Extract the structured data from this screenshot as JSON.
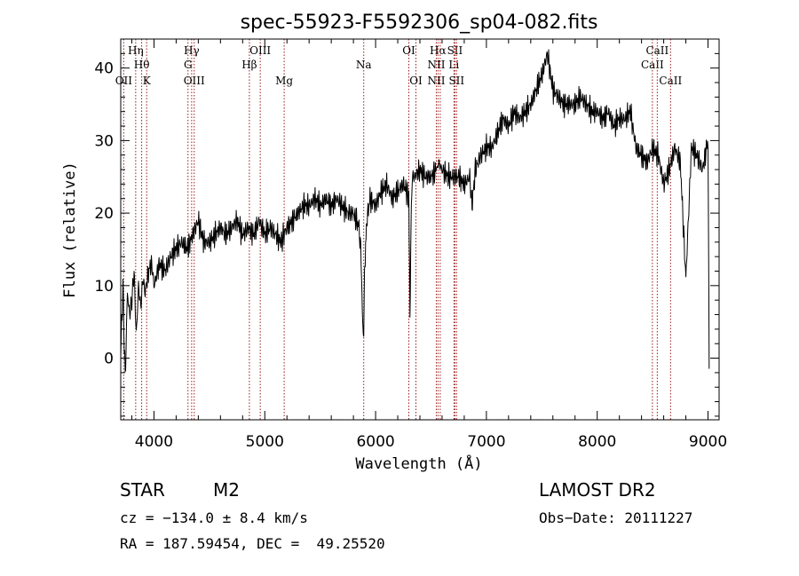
{
  "chart_data": {
    "type": "line",
    "title": "spec-55923-F5592306_sp04-082.fits",
    "xlabel": "Wavelength (Å)",
    "ylabel": "Flux (relative)",
    "xlim": [
      3700,
      9100
    ],
    "ylim": [
      -8.5,
      44
    ],
    "x_ticks": [
      4000,
      5000,
      6000,
      7000,
      8000,
      9000
    ],
    "y_ticks": [
      0,
      10,
      20,
      30,
      40
    ],
    "grid": false,
    "series": [
      {
        "color": "#000000",
        "x": [
          3700,
          3720,
          3740,
          3760,
          3780,
          3800,
          3820,
          3840,
          3860,
          3880,
          3900,
          3920,
          3950,
          3980,
          4000,
          4050,
          4100,
          4150,
          4200,
          4250,
          4300,
          4350,
          4400,
          4450,
          4500,
          4550,
          4600,
          4650,
          4700,
          4750,
          4800,
          4850,
          4900,
          4950,
          5000,
          5050,
          5100,
          5150,
          5170,
          5200,
          5250,
          5300,
          5350,
          5400,
          5450,
          5500,
          5550,
          5600,
          5650,
          5700,
          5750,
          5800,
          5850,
          5870,
          5880,
          5893,
          5900,
          5910,
          5920,
          5950,
          6000,
          6050,
          6100,
          6150,
          6200,
          6250,
          6280,
          6300,
          6310,
          6320,
          6330,
          6350,
          6400,
          6450,
          6500,
          6550,
          6563,
          6600,
          6650,
          6700,
          6750,
          6800,
          6850,
          6870,
          6900,
          6950,
          7000,
          7050,
          7100,
          7150,
          7200,
          7250,
          7300,
          7350,
          7400,
          7450,
          7500,
          7550,
          7600,
          7650,
          7700,
          7750,
          7800,
          7850,
          7900,
          7950,
          8000,
          8050,
          8100,
          8150,
          8200,
          8250,
          8300,
          8350,
          8400,
          8450,
          8500,
          8550,
          8600,
          8650,
          8700,
          8750,
          8800,
          8850,
          8900,
          8950,
          9000,
          9010
        ],
        "y": [
          0,
          10,
          -3,
          9,
          6,
          8,
          12,
          3,
          10,
          7,
          11,
          9,
          12,
          13,
          10,
          13,
          12,
          14,
          15,
          16,
          15,
          17,
          19,
          16,
          16,
          17,
          18,
          17,
          18,
          19,
          17,
          18,
          17,
          19,
          17,
          18,
          17,
          16,
          17,
          18,
          19,
          20,
          21,
          21,
          22,
          21,
          22,
          21,
          22,
          21,
          20,
          20,
          18,
          14,
          6,
          3,
          12,
          15,
          19,
          22,
          21,
          23,
          24,
          22,
          23,
          24,
          23,
          22,
          6,
          18,
          25,
          25,
          26,
          25,
          25,
          26,
          27,
          26,
          25,
          25,
          25,
          24,
          25,
          21,
          26,
          28,
          29,
          29,
          31,
          33,
          32,
          34,
          33,
          34,
          35,
          37,
          39,
          42,
          37,
          36,
          35,
          35,
          35,
          36,
          35,
          34,
          34,
          33,
          34,
          32,
          33,
          33,
          34,
          29,
          28,
          27,
          29,
          28,
          24,
          26,
          29,
          27,
          11,
          29,
          28,
          26,
          30,
          -0.5
        ]
      }
    ],
    "lines": [
      {
        "wavelength": 3727,
        "labels": [
          {
            "text": "OII",
            "row": 2
          }
        ]
      },
      {
        "wavelength": 3835,
        "labels": [
          {
            "text": "Hη",
            "row": 0
          }
        ]
      },
      {
        "wavelength": 3889,
        "labels": [
          {
            "text": "Hθ",
            "row": 1
          }
        ]
      },
      {
        "wavelength": 3934,
        "labels": [
          {
            "text": "K",
            "row": 2
          }
        ]
      },
      {
        "wavelength": 4307,
        "labels": [
          {
            "text": "G",
            "row": 1
          }
        ]
      },
      {
        "wavelength": 4340,
        "labels": [
          {
            "text": "Hγ",
            "row": 0
          }
        ]
      },
      {
        "wavelength": 4363,
        "labels": [
          {
            "text": "OIII",
            "row": 2
          }
        ]
      },
      {
        "wavelength": 4861,
        "labels": [
          {
            "text": "Hβ",
            "row": 1
          }
        ]
      },
      {
        "wavelength": 4959,
        "labels": [
          {
            "text": "OIII",
            "row": 0
          }
        ]
      },
      {
        "wavelength": 5175,
        "labels": [
          {
            "text": "Mg",
            "row": 2
          }
        ]
      },
      {
        "wavelength": 5893,
        "labels": [
          {
            "text": "Na",
            "row": 1
          }
        ]
      },
      {
        "wavelength": 6300,
        "labels": [
          {
            "text": "OI",
            "row": 0
          }
        ]
      },
      {
        "wavelength": 6364,
        "labels": [
          {
            "text": "OI",
            "row": 2
          }
        ]
      },
      {
        "wavelength": 6548,
        "labels": [
          {
            "text": "NII",
            "row": 1
          },
          {
            "text": "NII",
            "row": 2
          }
        ]
      },
      {
        "wavelength": 6563,
        "labels": [
          {
            "text": "Hα",
            "row": 0
          }
        ]
      },
      {
        "wavelength": 6583,
        "labels": [
          {
            "text": "",
            "row": 0
          }
        ]
      },
      {
        "wavelength": 6707,
        "labels": [
          {
            "text": "Li",
            "row": 1
          }
        ]
      },
      {
        "wavelength": 6716,
        "labels": [
          {
            "text": "SII",
            "row": 0
          }
        ]
      },
      {
        "wavelength": 6731,
        "labels": [
          {
            "text": "SII",
            "row": 2
          }
        ]
      },
      {
        "wavelength": 8498,
        "labels": [
          {
            "text": "CaII",
            "row": 1
          }
        ]
      },
      {
        "wavelength": 8542,
        "labels": [
          {
            "text": "CaII",
            "row": 0
          }
        ]
      },
      {
        "wavelength": 8662,
        "labels": [
          {
            "text": "CaII",
            "row": 2
          }
        ]
      }
    ],
    "line_color": "#9a1a1a"
  },
  "info": {
    "object_type": "STAR",
    "subclass": "M2",
    "survey": "LAMOST DR2",
    "redshift": "cz = −134.0 ± 8.4 km/s",
    "obs_date": "Obs−Date: 20111227",
    "coords": "RA = 187.59454, DEC =  49.25520"
  }
}
